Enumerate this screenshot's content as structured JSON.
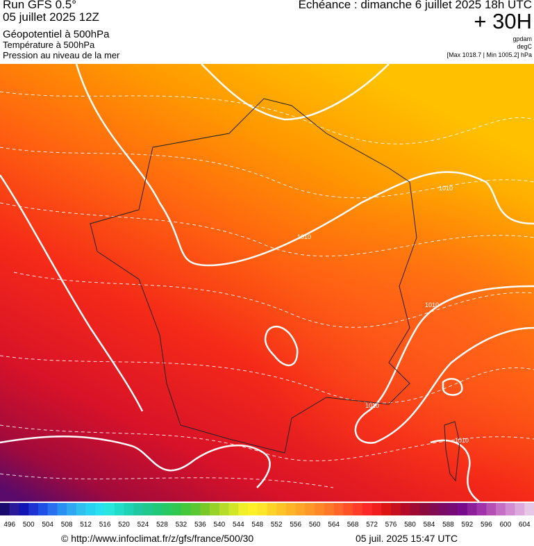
{
  "header": {
    "run": "Run GFS 0.5°",
    "date": "05 juillet 2025 12Z",
    "field1": "Géopotentiel à 500hPa",
    "field2": "Température à 500hPa",
    "field3": "Pression au niveau de la mer",
    "echeance": "Echéance : dimanche 6 juillet 2025 18h UTC",
    "lead": "+ 30H",
    "unit1": "gpdam",
    "unit2": "degC",
    "range": "[Max 1018.7 | Min 1005.2] hPa"
  },
  "isobar_labels": [
    "1010",
    "1010",
    "1010",
    "1010",
    "1010"
  ],
  "colorbar": {
    "labels": [
      496,
      500,
      504,
      508,
      512,
      516,
      520,
      524,
      528,
      532,
      536,
      540,
      544,
      548,
      552,
      556,
      560,
      564,
      568,
      572,
      576,
      580,
      584,
      588,
      592,
      596,
      600,
      604
    ],
    "colors": [
      "#1a0a6e",
      "#2a1a9a",
      "#1414b4",
      "#1e32d2",
      "#1e50e6",
      "#2870f0",
      "#2890f0",
      "#30a8f0",
      "#30c0f0",
      "#28d2f0",
      "#28e0f0",
      "#28e6dc",
      "#20dcc8",
      "#20d2b4",
      "#20c8a0",
      "#20c88c",
      "#20c878",
      "#28c864",
      "#32c850",
      "#46c83c",
      "#5ac832",
      "#78c828",
      "#96d228",
      "#b4dc28",
      "#d2e628",
      "#f0f028",
      "#fff028",
      "#ffe628",
      "#ffd228",
      "#ffc328",
      "#ffb428",
      "#ffa528",
      "#ff9628",
      "#ff8728",
      "#ff7828",
      "#ff6428",
      "#ff5028",
      "#ff3c28",
      "#ff2828",
      "#f01e1e",
      "#dc1414",
      "#c80f1e",
      "#b40a28",
      "#a00a32",
      "#8c0a3c",
      "#820a50",
      "#7a0a64",
      "#780a78",
      "#780a8c",
      "#8c1e9a",
      "#a032aa",
      "#b450b4",
      "#c46ec4",
      "#d28cd2",
      "#dcaadc",
      "#e6c8e6"
    ]
  },
  "footer": {
    "url": "© http://www.infoclimat.fr/z/gfs/france/500/30",
    "timestamp": "05 juil. 2025 15:47 UTC"
  }
}
